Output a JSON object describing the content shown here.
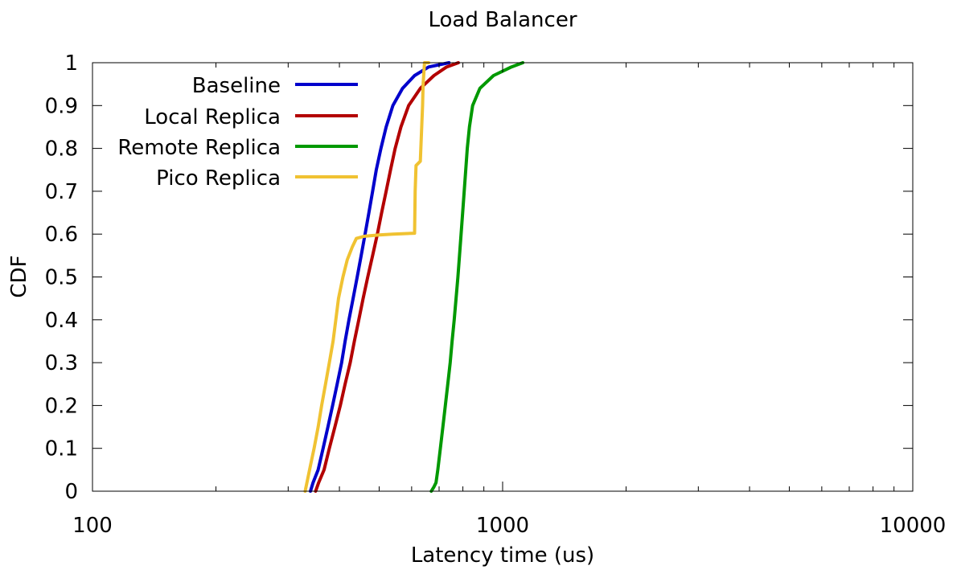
{
  "chart_data": {
    "type": "line",
    "title": "Load Balancer",
    "xlabel": "Latency time (us)",
    "ylabel": "CDF",
    "xscale": "log",
    "xlim": [
      100,
      10000
    ],
    "ylim": [
      0,
      1
    ],
    "x_ticks": [
      "100",
      "1000",
      "10000"
    ],
    "y_ticks": [
      "0",
      "0.1",
      "0.2",
      "0.3",
      "0.4",
      "0.5",
      "0.6",
      "0.7",
      "0.8",
      "0.9",
      "1"
    ],
    "grid": false,
    "legend_position": "top-left",
    "series": [
      {
        "name": "Baseline",
        "color": "#0000cc",
        "points": [
          [
            340,
            0
          ],
          [
            345,
            0.02
          ],
          [
            355,
            0.05
          ],
          [
            365,
            0.1
          ],
          [
            375,
            0.15
          ],
          [
            385,
            0.2
          ],
          [
            395,
            0.25
          ],
          [
            405,
            0.3
          ],
          [
            413,
            0.35
          ],
          [
            422,
            0.4
          ],
          [
            432,
            0.45
          ],
          [
            442,
            0.5
          ],
          [
            452,
            0.55
          ],
          [
            462,
            0.6
          ],
          [
            472,
            0.65
          ],
          [
            482,
            0.7
          ],
          [
            492,
            0.75
          ],
          [
            505,
            0.8
          ],
          [
            520,
            0.85
          ],
          [
            540,
            0.9
          ],
          [
            570,
            0.94
          ],
          [
            610,
            0.97
          ],
          [
            660,
            0.99
          ],
          [
            740,
            1.0
          ]
        ]
      },
      {
        "name": "Local Replica",
        "color": "#b30000",
        "points": [
          [
            350,
            0
          ],
          [
            356,
            0.02
          ],
          [
            367,
            0.05
          ],
          [
            378,
            0.1
          ],
          [
            390,
            0.15
          ],
          [
            402,
            0.2
          ],
          [
            413,
            0.25
          ],
          [
            425,
            0.3
          ],
          [
            435,
            0.35
          ],
          [
            446,
            0.4
          ],
          [
            457,
            0.45
          ],
          [
            469,
            0.5
          ],
          [
            482,
            0.55
          ],
          [
            495,
            0.6
          ],
          [
            507,
            0.65
          ],
          [
            520,
            0.7
          ],
          [
            533,
            0.75
          ],
          [
            547,
            0.8
          ],
          [
            565,
            0.85
          ],
          [
            590,
            0.9
          ],
          [
            630,
            0.94
          ],
          [
            680,
            0.97
          ],
          [
            730,
            0.99
          ],
          [
            780,
            1.0
          ]
        ]
      },
      {
        "name": "Remote Replica",
        "color": "#009900",
        "points": [
          [
            670,
            0
          ],
          [
            680,
            0.01
          ],
          [
            688,
            0.02
          ],
          [
            695,
            0.05
          ],
          [
            705,
            0.1
          ],
          [
            715,
            0.15
          ],
          [
            725,
            0.2
          ],
          [
            735,
            0.25
          ],
          [
            745,
            0.3
          ],
          [
            753,
            0.35
          ],
          [
            762,
            0.4
          ],
          [
            770,
            0.45
          ],
          [
            778,
            0.5
          ],
          [
            785,
            0.55
          ],
          [
            792,
            0.6
          ],
          [
            799,
            0.65
          ],
          [
            806,
            0.7
          ],
          [
            813,
            0.75
          ],
          [
            820,
            0.8
          ],
          [
            830,
            0.85
          ],
          [
            845,
            0.9
          ],
          [
            880,
            0.94
          ],
          [
            950,
            0.97
          ],
          [
            1050,
            0.99
          ],
          [
            1120,
            1.0
          ]
        ]
      },
      {
        "name": "Pico Replica",
        "color": "#f0c232",
        "points": [
          [
            330,
            0
          ],
          [
            335,
            0.03
          ],
          [
            340,
            0.06
          ],
          [
            347,
            0.1
          ],
          [
            355,
            0.15
          ],
          [
            362,
            0.2
          ],
          [
            370,
            0.25
          ],
          [
            378,
            0.3
          ],
          [
            386,
            0.35
          ],
          [
            392,
            0.4
          ],
          [
            398,
            0.45
          ],
          [
            408,
            0.5
          ],
          [
            418,
            0.54
          ],
          [
            430,
            0.57
          ],
          [
            440,
            0.59
          ],
          [
            460,
            0.595
          ],
          [
            500,
            0.598
          ],
          [
            540,
            0.6
          ],
          [
            610,
            0.602
          ],
          [
            612,
            0.7
          ],
          [
            615,
            0.76
          ],
          [
            630,
            0.77
          ],
          [
            638,
            0.9
          ],
          [
            640,
            0.95
          ],
          [
            645,
            1.0
          ],
          [
            660,
            1.0
          ]
        ]
      }
    ]
  }
}
